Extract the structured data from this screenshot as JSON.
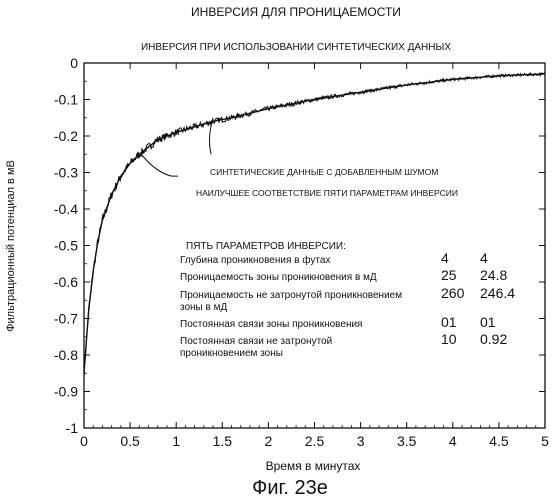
{
  "chart_data": {
    "type": "line",
    "title": "ИНВЕРСИЯ ДЛЯ ПРОНИЦАЕМОСТИ",
    "subtitle": "ИНВЕРСИЯ ПРИ ИСПОЛЬЗОВАНИИ СИНТЕТИЧЕСКИХ ДАННЫХ",
    "xlabel": "Время в минутах",
    "ylabel": "Фильтрационный потенциал в мВ",
    "xlim": [
      0,
      5
    ],
    "ylim": [
      -1,
      0
    ],
    "x_ticks": [
      "0",
      "0.5",
      "1",
      "1.5",
      "2",
      "2.5",
      "3",
      "3.5",
      "4",
      "4.5",
      "5"
    ],
    "y_ticks": [
      "0",
      "-0.1",
      "-0.2",
      "-0.3",
      "-0.4",
      "-0.5",
      "-0.6",
      "-0.7",
      "-0.8",
      "-0.9",
      "-1"
    ],
    "grid": false,
    "series": [
      {
        "name": "СИНТЕТИЧЕСКИЕ ДАННЫЕ С ДОБАВЛЕННЫМ ШУМОМ",
        "noisy": true,
        "x": [
          0,
          0.05,
          0.1,
          0.15,
          0.2,
          0.3,
          0.4,
          0.5,
          0.6,
          0.7,
          0.8,
          1.0,
          1.2,
          1.4,
          1.6,
          2.0,
          2.5,
          3.0,
          3.5,
          4.0,
          4.5,
          5.0
        ],
        "y": [
          -0.85,
          -0.68,
          -0.57,
          -0.49,
          -0.43,
          -0.36,
          -0.31,
          -0.275,
          -0.25,
          -0.23,
          -0.21,
          -0.19,
          -0.175,
          -0.16,
          -0.15,
          -0.125,
          -0.1,
          -0.08,
          -0.06,
          -0.045,
          -0.035,
          -0.03
        ]
      },
      {
        "name": "НАИЛУЧШЕЕ СООТВЕТСТВИЕ ПЯТИ ПАРАМЕТРАМ ИНВЕРСИИ",
        "noisy": false,
        "x": [
          0,
          0.05,
          0.1,
          0.15,
          0.2,
          0.3,
          0.4,
          0.5,
          0.6,
          0.7,
          0.8,
          1.0,
          1.2,
          1.4,
          1.6,
          2.0,
          2.5,
          3.0,
          3.5,
          4.0,
          4.5,
          5.0
        ],
        "y": [
          -0.85,
          -0.68,
          -0.57,
          -0.49,
          -0.43,
          -0.36,
          -0.31,
          -0.275,
          -0.25,
          -0.23,
          -0.21,
          -0.19,
          -0.175,
          -0.16,
          -0.15,
          -0.125,
          -0.1,
          -0.08,
          -0.06,
          -0.045,
          -0.035,
          -0.03
        ]
      }
    ],
    "annotations": [
      {
        "text": "СИНТЕТИЧЕСКИЕ ДАННЫЕ С ДОБАВЛЕННЫМ ШУМОМ",
        "points_to": {
          "x": 1.4,
          "y": -0.15
        }
      },
      {
        "text": "НАИЛУЧШЕЕ СООТВЕТСТВИЕ ПЯТИ ПАРАМЕТРАМ ИНВЕРСИИ",
        "points_to": {
          "x": 0.62,
          "y": -0.25
        }
      }
    ],
    "parameters_table": {
      "title": "ПЯТЬ ПАРАМЕТРОВ ИНВЕРСИИ:",
      "rows": [
        {
          "label": [
            "Глубина проникновения в футах"
          ],
          "true_value": "4",
          "fit_value": "4"
        },
        {
          "label": [
            "Проницаемость зоны проникновения в мД"
          ],
          "true_value": "25",
          "fit_value": "24.8"
        },
        {
          "label": [
            "Проницаемость не затронутой проникновением",
            "зоны в мД"
          ],
          "true_value": "260",
          "fit_value": "246.4"
        },
        {
          "label": [
            "Постоянная связи зоны проникновения"
          ],
          "true_value": "01",
          "fit_value": "01"
        },
        {
          "label": [
            "Постоянная связи не затронутой",
            "проникновением зоны"
          ],
          "true_value": "10",
          "fit_value": "0.92"
        }
      ]
    }
  },
  "caption": "Фиг. 23е"
}
